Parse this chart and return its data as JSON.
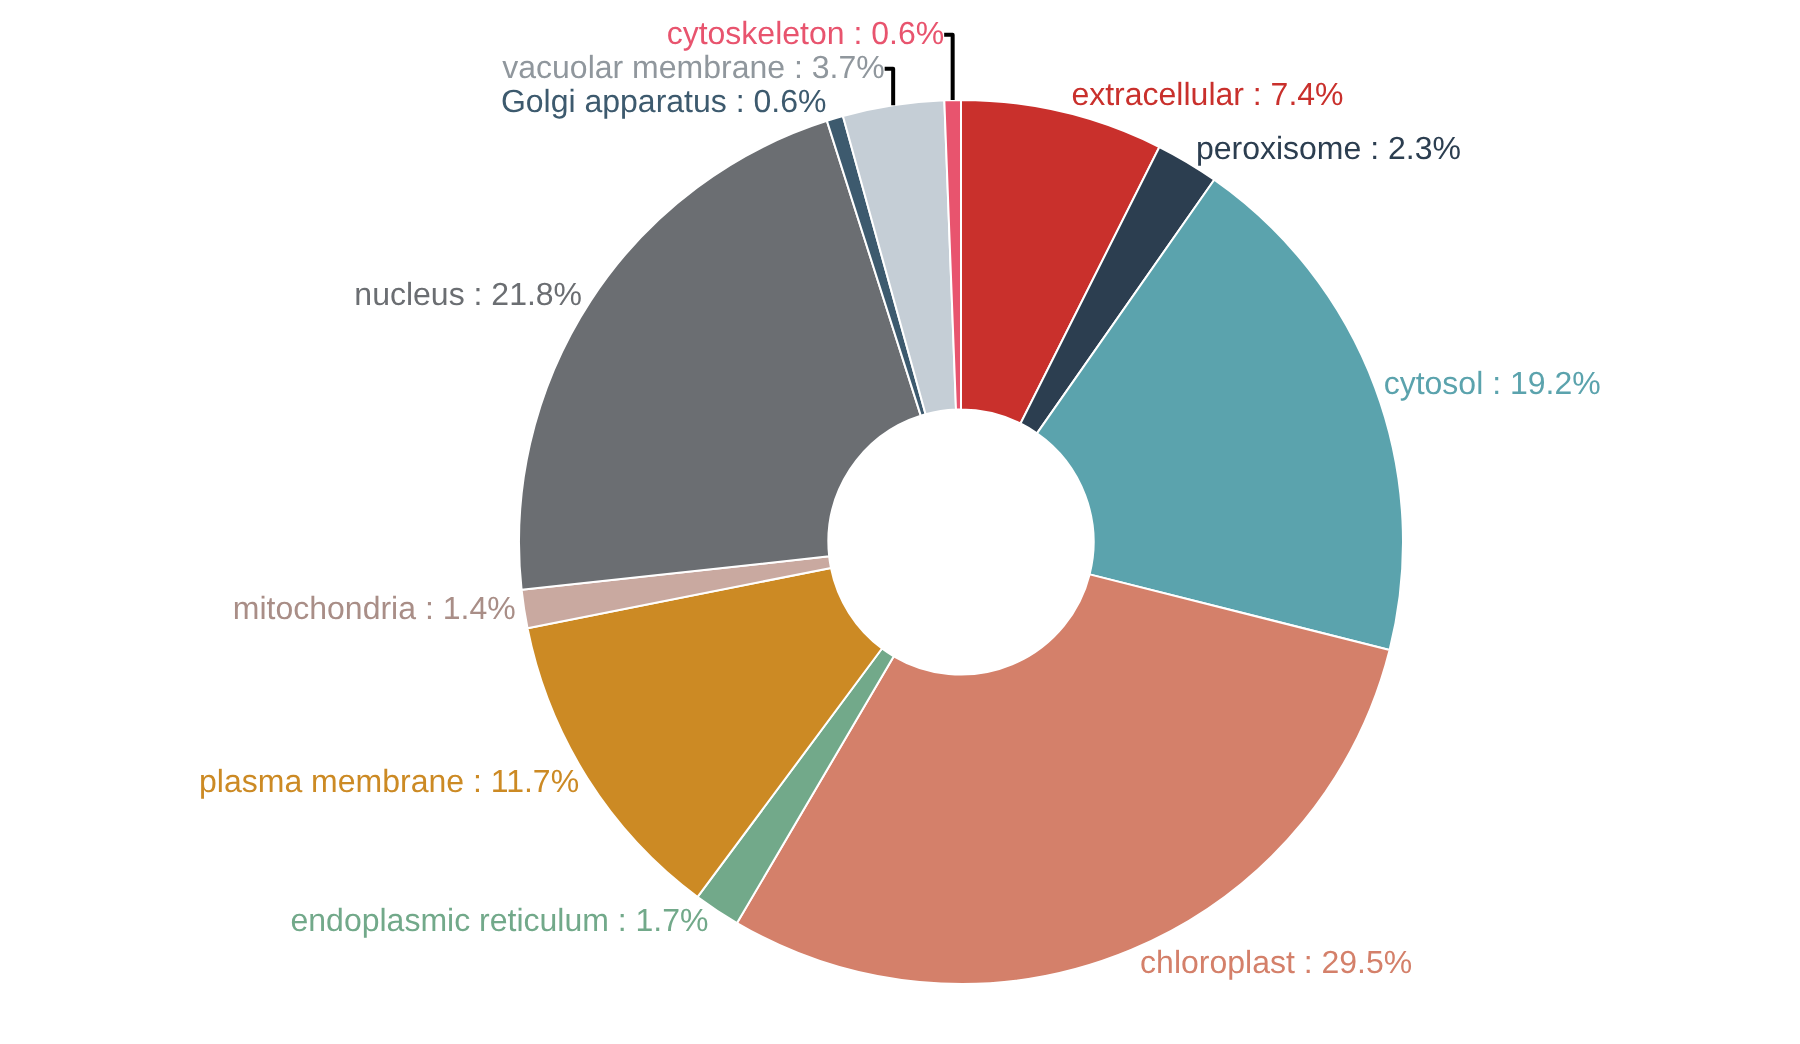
{
  "chart_data": {
    "type": "donut",
    "categories": [
      "extracellular",
      "peroxisome",
      "cytosol",
      "chloroplast",
      "endoplasmic reticulum",
      "plasma membrane",
      "mitochondria",
      "nucleus",
      "Golgi apparatus",
      "vacuolar membrane",
      "cytoskeleton"
    ],
    "values": [
      7.4,
      2.3,
      19.2,
      29.5,
      1.7,
      11.7,
      1.4,
      21.8,
      0.6,
      3.7,
      0.6
    ],
    "colors": [
      "#c9302c",
      "#2c3e50",
      "#5ba3ad",
      "#d4806a",
      "#72a98a",
      "#cc8a24",
      "#c9a9a0",
      "#6b6e72",
      "#3d5a6e",
      "#c5ced6",
      "#e8546e"
    ],
    "value_labels": [
      "7.4%",
      "2.3%",
      "19.2%",
      "29.5%",
      "1.7%",
      "11.7%",
      "1.4%",
      "21.8%",
      "0.6%",
      "3.7%",
      "0.6%"
    ],
    "legend": false
  }
}
